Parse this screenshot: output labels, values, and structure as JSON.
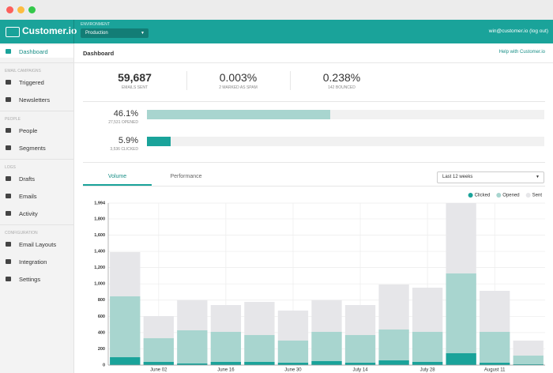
{
  "header": {
    "logo": "Customer.io",
    "env_label": "ENVIRONMENT",
    "env_value": "Production",
    "user": "win@customer.io (log out)"
  },
  "sidebar": {
    "items": [
      {
        "type": "item",
        "label": "Dashboard"
      },
      {
        "type": "section",
        "label": "EMAIL CAMPAIGNS"
      },
      {
        "type": "item",
        "label": "Triggered"
      },
      {
        "type": "item",
        "label": "Newsletters"
      },
      {
        "type": "section",
        "label": "PEOPLE"
      },
      {
        "type": "item",
        "label": "People"
      },
      {
        "type": "item",
        "label": "Segments"
      },
      {
        "type": "section",
        "label": "LOGS"
      },
      {
        "type": "item",
        "label": "Drafts"
      },
      {
        "type": "item",
        "label": "Emails"
      },
      {
        "type": "item",
        "label": "Activity"
      },
      {
        "type": "section",
        "label": "CONFIGURATION"
      },
      {
        "type": "item",
        "label": "Email Layouts"
      },
      {
        "type": "item",
        "label": "Integration"
      },
      {
        "type": "item",
        "label": "Settings"
      }
    ]
  },
  "page": {
    "title": "Dashboard",
    "help": "Help with Customer.io"
  },
  "stats": [
    {
      "value": "59,687",
      "label": "EMAILS SENT"
    },
    {
      "value": "0.003%",
      "label": "2 MARKED AS SPAM"
    },
    {
      "value": "0.238%",
      "label": "142 BOUNCED"
    }
  ],
  "rates": [
    {
      "value": 46.1,
      "label": "46.1%",
      "detail": "27,531 OPENED",
      "color": "#a8d5cf"
    },
    {
      "value": 5.9,
      "label": "5.9%",
      "detail": "3,536 CLICKED",
      "color": "#1aa39a"
    }
  ],
  "tabs": [
    "Volume",
    "Performance"
  ],
  "range": "Last 12 weeks",
  "chart_data": {
    "type": "bar",
    "categories": [
      null,
      "June 02",
      null,
      "June 16",
      null,
      "June 30",
      null,
      "July 14",
      null,
      "July 28",
      null,
      "August 11",
      null
    ],
    "series": [
      {
        "name": "Clicked",
        "color": "#1aa39a",
        "values": [
          97,
          39,
          20,
          39,
          39,
          29,
          49,
          29,
          58,
          39,
          146,
          29,
          10
        ]
      },
      {
        "name": "Opened",
        "color": "#a8d5cf",
        "values": [
          846,
          331,
          428,
          409,
          370,
          302,
          409,
          370,
          438,
          409,
          1128,
          409,
          117
        ]
      },
      {
        "name": "Sent",
        "color": "#e6e6e9",
        "values": [
          1391,
          603,
          798,
          739,
          778,
          671,
          798,
          739,
          992,
          953,
          1994,
          914,
          302
        ]
      }
    ],
    "ylim": [
      0,
      1994
    ],
    "yticks": [
      0,
      200,
      400,
      600,
      800,
      {
        "value": 1000,
        "label": "1,000"
      },
      {
        "value": 1200,
        "label": "1,200"
      },
      {
        "value": 1400,
        "label": "1,400"
      },
      {
        "value": 1600,
        "label": "1,600"
      },
      {
        "value": 1800,
        "label": "1,800"
      },
      {
        "value": 1994,
        "label": "1,994"
      }
    ],
    "grid": true,
    "legend": "top-right"
  }
}
